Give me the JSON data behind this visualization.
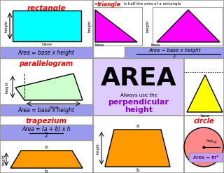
{
  "bg_color": "#e8e8e8",
  "title": "AREA",
  "subtitle1": "Always use the",
  "subtitle2": "perpendicular",
  "subtitle3": "height",
  "rect_title": "rectangle",
  "rect_color": "#00ffff",
  "rect_formula": "Area = base x height",
  "formula_bg": "#9999ee",
  "para_title": "parallelogram",
  "para_color": "#ccffcc",
  "para_formula": "Area = base x height",
  "trap_title": "trapezium",
  "trap_color": "#ff9900",
  "trap_formula_num": "Area = (a + b) x h",
  "trap_formula_den": "2",
  "tri_color": "#ff00ff",
  "tri_formula_num": "Area = base x height",
  "tri_formula_den": "2",
  "yellow_tri_color": "#ffff00",
  "circle_title": "circle",
  "circle_color": "#ff8888",
  "circle_formula": "Area = πr²",
  "circle_formula_bg": "#cc99ff",
  "panel_bg": "#ddccff",
  "red": "#ff0000",
  "purple": "#8800cc",
  "black": "#000000",
  "white": "#ffffff",
  "border": "#999999"
}
